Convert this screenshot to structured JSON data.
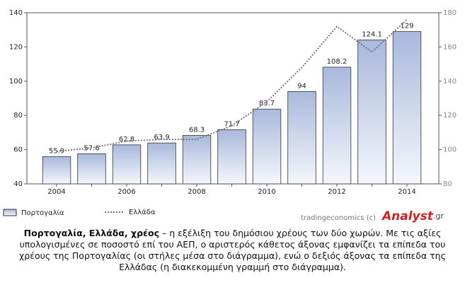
{
  "chart_data": {
    "type": "combo",
    "categories": [
      "2004",
      null,
      "2006",
      null,
      "2008",
      null,
      "2010",
      null,
      "2012",
      null,
      "2014"
    ],
    "series": [
      {
        "name": "Πορτογαλία",
        "type": "bar",
        "color": "#a9b9dc",
        "values": [
          55.9,
          57.6,
          62.8,
          63.9,
          68.3,
          71.7,
          83.7,
          94,
          108.2,
          124.1,
          129
        ]
      },
      {
        "name": "Ελλάδα",
        "type": "line",
        "axis": "y2",
        "color": "#777777",
        "values": [
          99,
          101,
          105,
          106,
          106,
          114,
          128,
          148,
          172,
          157,
          176
        ]
      }
    ],
    "ylim": [
      40,
      140
    ],
    "yticks": [
      40,
      60,
      80,
      100,
      120,
      140
    ],
    "y2lim": [
      80,
      180
    ],
    "y2ticks": [
      80,
      100,
      120,
      140,
      160,
      180
    ],
    "grid": false
  },
  "source": "tradingeconomics (c)",
  "logo": {
    "main": "Analyst",
    "suffix": ".gr"
  },
  "caption": {
    "bold": "Πορτογαλία, Ελλάδα, χρέος",
    "text": " – η εξέλιξη του δημόσιου χρέους των δύο χωρών. Με τις αξίες υπολογισμένες σε ποσοστό επί του ΑΕΠ, ο αριστερός κάθετος άξονας εμφανίζει τα επίπεδα του χρέους της Πορτογαλίας (οι στήλες μέσα στο διάγραμμα), ενώ ο δεξιός άξονας τα επίπεδα της Ελλάδας (η διακεκομμένη γραμμή στο διάγραμμα)."
  }
}
